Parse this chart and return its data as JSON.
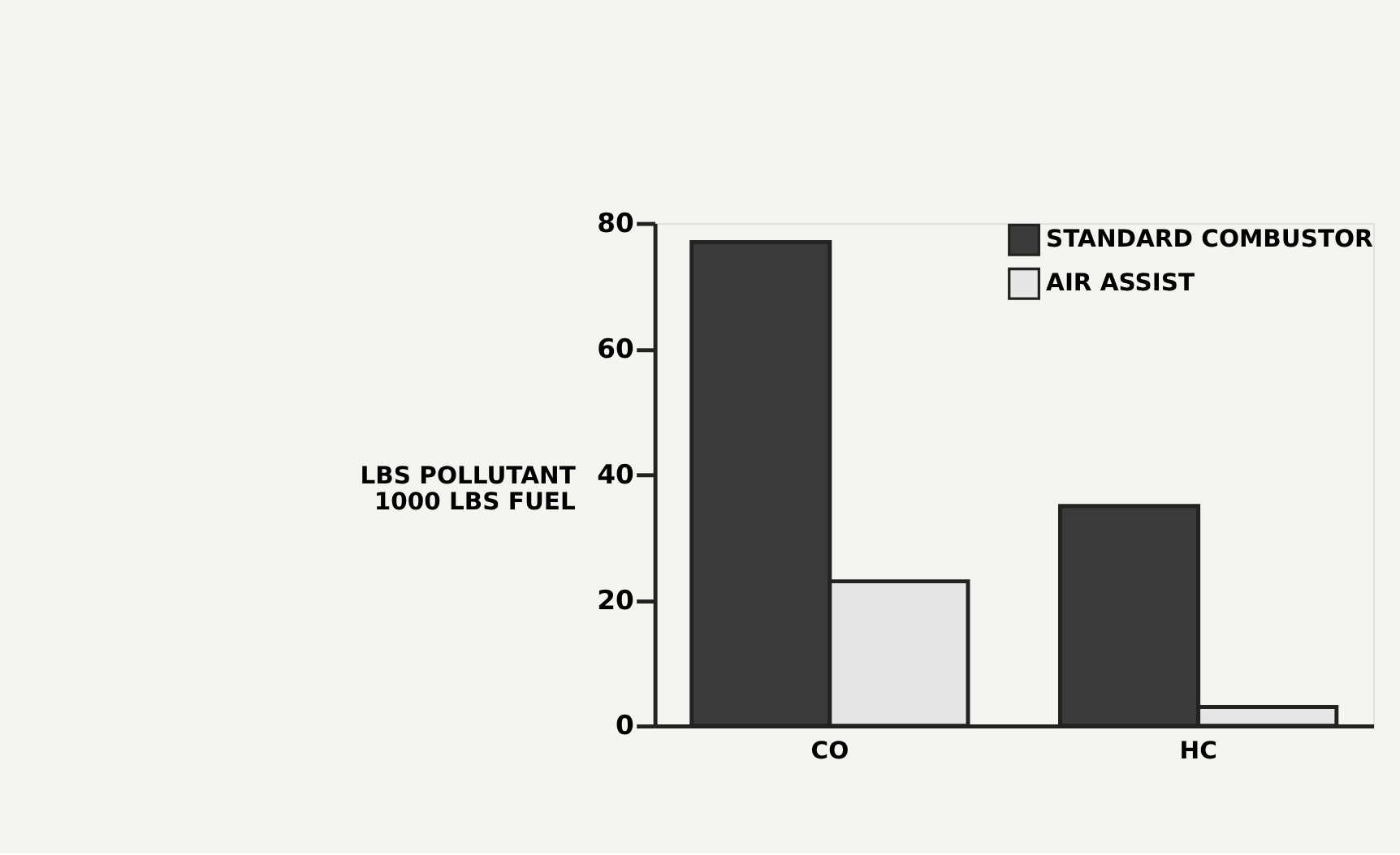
{
  "chart_data": {
    "type": "bar",
    "ylabel": "LBS POLLUTANT\n1000 LBS FUEL",
    "categories": [
      "CO",
      "HC"
    ],
    "series": [
      {
        "name": "STANDARD COMBUSTOR",
        "color": "#3a3a3a",
        "values": [
          77,
          35
        ]
      },
      {
        "name": "AIR ASSIST",
        "color": "#e6e6e6",
        "values": [
          23,
          3
        ]
      }
    ],
    "ylim": [
      0,
      80
    ],
    "yticks": [
      0,
      20,
      40,
      60,
      80
    ],
    "grid": false,
    "legend": "top right"
  }
}
